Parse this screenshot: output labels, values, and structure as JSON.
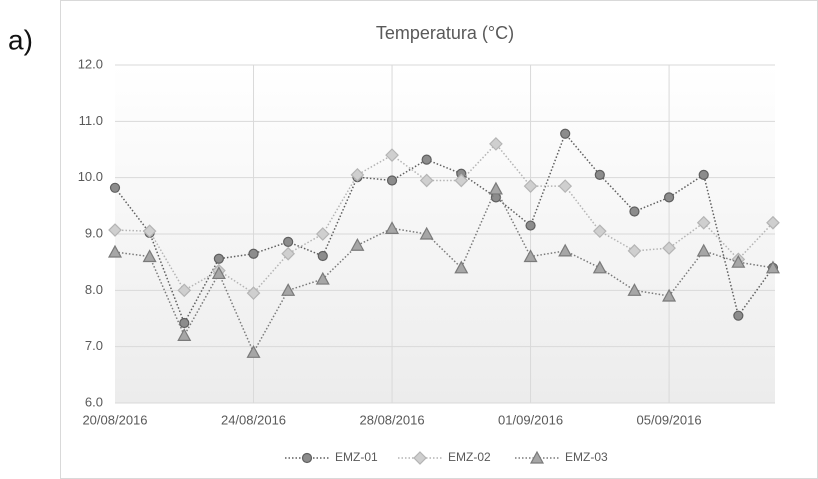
{
  "panel_label": "a)",
  "chart_data": {
    "type": "line",
    "title": "Temperatura  (°C)",
    "categories": [
      "20/08/2016",
      null,
      null,
      null,
      "24/08/2016",
      null,
      null,
      null,
      "28/08/2016",
      null,
      null,
      null,
      "01/09/2016",
      null,
      null,
      null,
      "05/09/2016",
      null,
      null,
      null
    ],
    "series": [
      {
        "name": "EMZ-01",
        "color": "#5f5f5f",
        "fill": "#8c8c8c",
        "marker": "circle",
        "values": [
          9.82,
          9.02,
          7.42,
          8.56,
          8.65,
          8.86,
          8.61,
          10.01,
          9.95,
          10.32,
          10.07,
          9.65,
          9.15,
          10.78,
          10.05,
          9.4,
          9.65,
          10.05,
          7.55,
          8.4
        ]
      },
      {
        "name": "EMZ-02",
        "color": "#b4b4b4",
        "fill": "#cfcfcf",
        "marker": "diamond",
        "values": [
          9.07,
          9.05,
          8.0,
          8.35,
          7.95,
          8.65,
          9.0,
          10.05,
          10.4,
          9.95,
          9.95,
          10.6,
          9.85,
          9.85,
          9.05,
          8.7,
          8.75,
          9.2,
          8.55,
          9.2
        ]
      },
      {
        "name": "EMZ-03",
        "color": "#7a7a7a",
        "fill": "#a6a6a6",
        "marker": "triangle",
        "values": [
          8.68,
          8.6,
          7.2,
          8.3,
          6.9,
          8.0,
          8.2,
          8.8,
          9.1,
          9.0,
          8.4,
          9.8,
          8.6,
          8.7,
          8.4,
          8.0,
          7.9,
          8.7,
          8.5,
          8.4
        ]
      }
    ],
    "ylim": [
      6,
      12
    ],
    "yticks": [
      {
        "value": 6,
        "label": "6.0"
      },
      {
        "value": 7,
        "label": "7.0"
      },
      {
        "value": 8,
        "label": "8.0"
      },
      {
        "value": 9,
        "label": "9.0"
      },
      {
        "value": 10,
        "label": "10.0"
      },
      {
        "value": 11,
        "label": "11.0"
      },
      {
        "value": 12,
        "label": "12.0"
      }
    ],
    "grid": true,
    "legend": "bottom"
  }
}
